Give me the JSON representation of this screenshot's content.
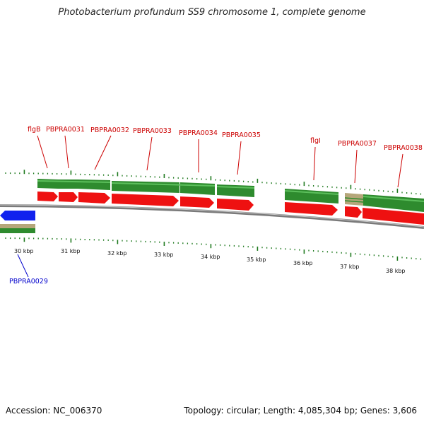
{
  "title": "Photobacterium profundum SS9 chromosome 1, complete genome",
  "accession": "Accession: NC_006370",
  "summary": "Topology: circular; Length: 4,085,304 bp; Genes: 3,606",
  "colors": {
    "forward_label": "#cc0000",
    "reverse_label": "#0000cc",
    "cds_forward": "#ee1111",
    "cds_reverse": "#1122ee",
    "gene_bar": "#2e8b2e",
    "gene_bar_light": "#4caf4c",
    "misc_feature": "#b5a67a",
    "backbone": "#7a7a7a",
    "tick": "#1f7a1f"
  },
  "scale_labels": [
    "30 kbp",
    "31 kbp",
    "32 kbp",
    "33 kbp",
    "34 kbp",
    "35 kbp",
    "36 kbp",
    "37 kbp",
    "38 kbp"
  ],
  "forward_genes": [
    "flgB",
    "PBPRA0031",
    "PBPRA0032",
    "PBPRA0033",
    "PBPRA0034",
    "PBPRA0035",
    "flgI",
    "PBPRA0037",
    "PBPRA0038"
  ],
  "reverse_genes": [
    "PBPRA0029"
  ]
}
